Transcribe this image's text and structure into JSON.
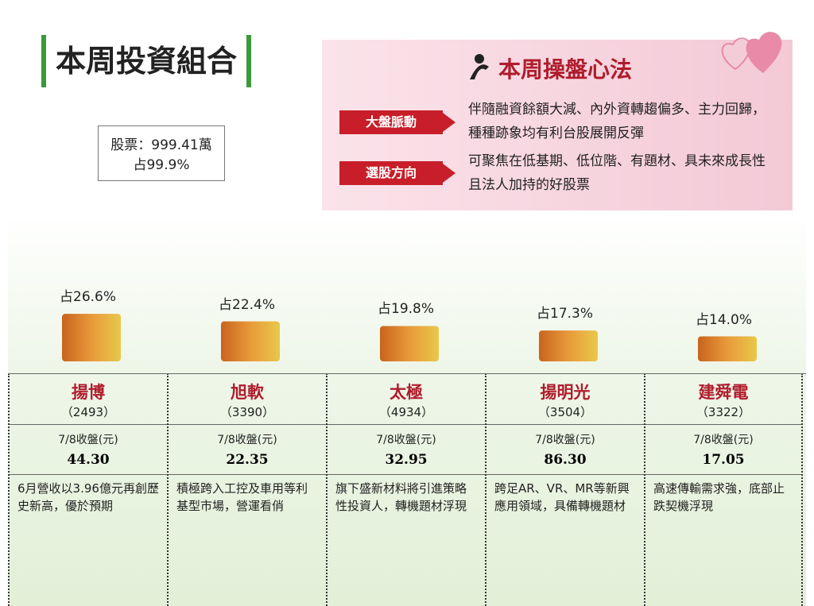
{
  "header": {
    "title": "本周投資組合",
    "holding": "股票：999.41萬",
    "holding_share": "占99.9%"
  },
  "panel": {
    "title": "本周操盤心法",
    "items": [
      {
        "tag": "大盤脈動",
        "text": "伴隨融資餘額大減、內外資轉趨偏多、主力回歸，種種跡象均有利台股展開反彈"
      },
      {
        "tag": "選股方向",
        "text": "可聚焦在低基期、低位階、有題材、具未來成長性且法人加持的好股票"
      }
    ]
  },
  "close_label": "7/8收盤(元)",
  "stocks": [
    {
      "share": 26.6,
      "share_label": "占26.6%",
      "name": "揚博",
      "code": "（2493）",
      "price": "44.30",
      "desc": "6月營收以3.96億元再創歷史新高，優於預期"
    },
    {
      "share": 22.4,
      "share_label": "占22.4%",
      "name": "旭軟",
      "code": "（3390）",
      "price": "22.35",
      "desc": "積極跨入工控及車用等利基型市場，營運看俏"
    },
    {
      "share": 19.8,
      "share_label": "占19.8%",
      "name": "太極",
      "code": "（4934）",
      "price": "32.95",
      "desc": "旗下盛新材料將引進策略性投資人，轉機題材浮現"
    },
    {
      "share": 17.3,
      "share_label": "占17.3%",
      "name": "揚明光",
      "code": "（3504）",
      "price": "86.30",
      "desc": "跨足AR、VR、MR等新興應用領域，具備轉機題材"
    },
    {
      "share": 14.0,
      "share_label": "占14.0%",
      "name": "建舜電",
      "code": "（3322）",
      "price": "17.05",
      "desc": "高速傳輸需求強，底部止跌契機浮現"
    }
  ]
}
